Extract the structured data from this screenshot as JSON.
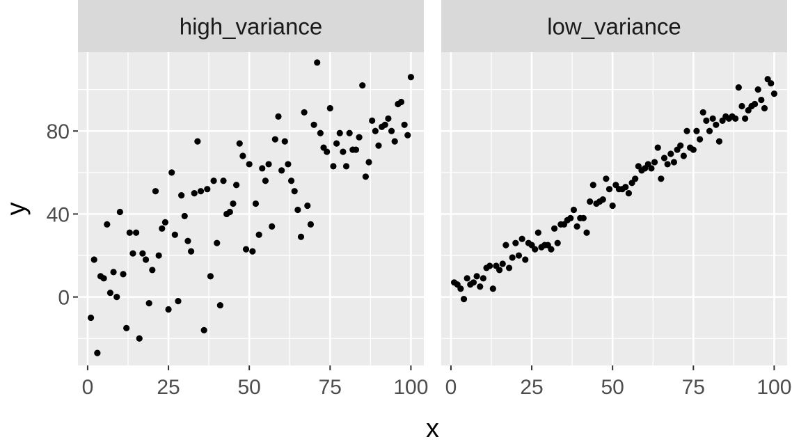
{
  "chart_data": {
    "type": "scatter",
    "xlabel": "x",
    "ylabel": "y",
    "xlim": [
      -3,
      104
    ],
    "ylim": [
      -33,
      118
    ],
    "x_ticks": [
      0,
      25,
      50,
      75,
      100
    ],
    "y_ticks": [
      0,
      40,
      80
    ],
    "grid": true,
    "facets": [
      {
        "name": "high_variance",
        "points": [
          [
            1,
            -10
          ],
          [
            2,
            18
          ],
          [
            3,
            -27
          ],
          [
            4,
            10
          ],
          [
            5,
            9
          ],
          [
            6,
            35
          ],
          [
            7,
            2
          ],
          [
            8,
            12
          ],
          [
            9,
            0
          ],
          [
            10,
            41
          ],
          [
            11,
            11
          ],
          [
            12,
            -15
          ],
          [
            13,
            31
          ],
          [
            14,
            21
          ],
          [
            15,
            31
          ],
          [
            16,
            -20
          ],
          [
            17,
            21
          ],
          [
            18,
            18
          ],
          [
            19,
            -3
          ],
          [
            20,
            13
          ],
          [
            21,
            51
          ],
          [
            22,
            20
          ],
          [
            23,
            33
          ],
          [
            24,
            36
          ],
          [
            25,
            -6
          ],
          [
            26,
            60
          ],
          [
            27,
            30
          ],
          [
            28,
            -2
          ],
          [
            29,
            49
          ],
          [
            30,
            39
          ],
          [
            31,
            27
          ],
          [
            32,
            22
          ],
          [
            33,
            50
          ],
          [
            34,
            75
          ],
          [
            35,
            51
          ],
          [
            36,
            -16
          ],
          [
            37,
            52
          ],
          [
            38,
            10
          ],
          [
            39,
            56
          ],
          [
            40,
            26
          ],
          [
            41,
            -4
          ],
          [
            42,
            56
          ],
          [
            43,
            40
          ],
          [
            44,
            41
          ],
          [
            45,
            45
          ],
          [
            46,
            54
          ],
          [
            47,
            74
          ],
          [
            48,
            68
          ],
          [
            49,
            23
          ],
          [
            50,
            64
          ],
          [
            51,
            22
          ],
          [
            52,
            45
          ],
          [
            53,
            30
          ],
          [
            54,
            62
          ],
          [
            55,
            56
          ],
          [
            56,
            64
          ],
          [
            57,
            34
          ],
          [
            58,
            76
          ],
          [
            59,
            87
          ],
          [
            60,
            61
          ],
          [
            61,
            75
          ],
          [
            62,
            64
          ],
          [
            63,
            56
          ],
          [
            64,
            51
          ],
          [
            65,
            42
          ],
          [
            66,
            29
          ],
          [
            67,
            89
          ],
          [
            68,
            44
          ],
          [
            69,
            35
          ],
          [
            70,
            83
          ],
          [
            71,
            113
          ],
          [
            72,
            79
          ],
          [
            73,
            72
          ],
          [
            74,
            70
          ],
          [
            75,
            91
          ],
          [
            76,
            63
          ],
          [
            77,
            74
          ],
          [
            78,
            79
          ],
          [
            79,
            70
          ],
          [
            80,
            63
          ],
          [
            81,
            79
          ],
          [
            82,
            71
          ],
          [
            83,
            71
          ],
          [
            84,
            77
          ],
          [
            85,
            102
          ],
          [
            86,
            58
          ],
          [
            87,
            65
          ],
          [
            88,
            85
          ],
          [
            89,
            80
          ],
          [
            90,
            73
          ],
          [
            91,
            82
          ],
          [
            92,
            83
          ],
          [
            93,
            86
          ],
          [
            94,
            80
          ],
          [
            95,
            75
          ],
          [
            96,
            93
          ],
          [
            97,
            94
          ],
          [
            98,
            83
          ],
          [
            99,
            78
          ],
          [
            100,
            106
          ]
        ]
      },
      {
        "name": "low_variance",
        "points": [
          [
            1,
            7
          ],
          [
            2,
            6
          ],
          [
            3,
            4
          ],
          [
            4,
            -1
          ],
          [
            5,
            9
          ],
          [
            6,
            6
          ],
          [
            7,
            7
          ],
          [
            8,
            10
          ],
          [
            9,
            5
          ],
          [
            10,
            9
          ],
          [
            11,
            14
          ],
          [
            12,
            15
          ],
          [
            13,
            4
          ],
          [
            14,
            15
          ],
          [
            15,
            13
          ],
          [
            16,
            16
          ],
          [
            17,
            25
          ],
          [
            18,
            14
          ],
          [
            19,
            19
          ],
          [
            20,
            26
          ],
          [
            21,
            20
          ],
          [
            22,
            28
          ],
          [
            23,
            18
          ],
          [
            24,
            26
          ],
          [
            25,
            25
          ],
          [
            26,
            23
          ],
          [
            27,
            31
          ],
          [
            28,
            24
          ],
          [
            29,
            25
          ],
          [
            30,
            25
          ],
          [
            31,
            23
          ],
          [
            32,
            33
          ],
          [
            33,
            26
          ],
          [
            34,
            35
          ],
          [
            35,
            35
          ],
          [
            36,
            37
          ],
          [
            37,
            38
          ],
          [
            38,
            42
          ],
          [
            39,
            34
          ],
          [
            40,
            38
          ],
          [
            41,
            38
          ],
          [
            42,
            31
          ],
          [
            43,
            46
          ],
          [
            44,
            54
          ],
          [
            45,
            45
          ],
          [
            46,
            46
          ],
          [
            47,
            47
          ],
          [
            48,
            57
          ],
          [
            49,
            52
          ],
          [
            50,
            44
          ],
          [
            51,
            54
          ],
          [
            52,
            52
          ],
          [
            53,
            52
          ],
          [
            54,
            53
          ],
          [
            55,
            50
          ],
          [
            56,
            55
          ],
          [
            57,
            57
          ],
          [
            58,
            63
          ],
          [
            59,
            61
          ],
          [
            60,
            62
          ],
          [
            61,
            64
          ],
          [
            62,
            62
          ],
          [
            63,
            65
          ],
          [
            64,
            72
          ],
          [
            65,
            57
          ],
          [
            66,
            67
          ],
          [
            67,
            64
          ],
          [
            68,
            69
          ],
          [
            69,
            65
          ],
          [
            70,
            71
          ],
          [
            71,
            73
          ],
          [
            72,
            68
          ],
          [
            73,
            80
          ],
          [
            74,
            72
          ],
          [
            75,
            71
          ],
          [
            76,
            80
          ],
          [
            77,
            76
          ],
          [
            78,
            89
          ],
          [
            79,
            85
          ],
          [
            80,
            80
          ],
          [
            81,
            86
          ],
          [
            82,
            83
          ],
          [
            83,
            75
          ],
          [
            84,
            85
          ],
          [
            85,
            87
          ],
          [
            86,
            86
          ],
          [
            87,
            87
          ],
          [
            88,
            86
          ],
          [
            89,
            101
          ],
          [
            90,
            92
          ],
          [
            91,
            86
          ],
          [
            92,
            90
          ],
          [
            93,
            92
          ],
          [
            94,
            93
          ],
          [
            95,
            100
          ],
          [
            96,
            95
          ],
          [
            97,
            91
          ],
          [
            98,
            105
          ],
          [
            99,
            103
          ],
          [
            100,
            98
          ]
        ]
      }
    ]
  }
}
